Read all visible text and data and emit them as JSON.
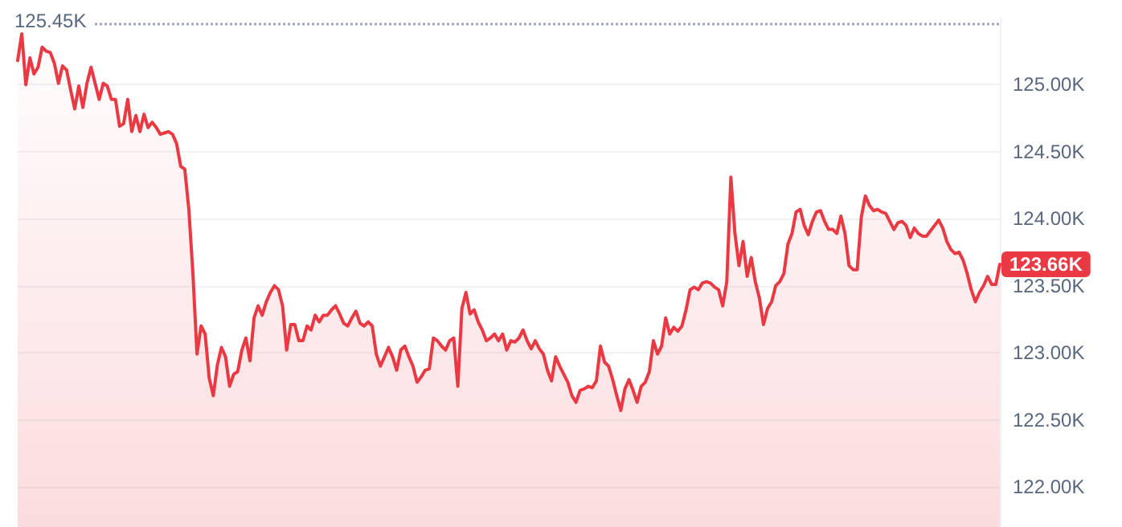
{
  "chart_data": {
    "type": "area",
    "categories": [
      null,
      null,
      null,
      null,
      null,
      null,
      null,
      null,
      null,
      null,
      null,
      null,
      null,
      null,
      null,
      null,
      null,
      null,
      null,
      null,
      null,
      null,
      null,
      null,
      null,
      null,
      null,
      null,
      null,
      null,
      null,
      null,
      null,
      null,
      null,
      null,
      null,
      null,
      null,
      null,
      null,
      null,
      null,
      null,
      null,
      null,
      null,
      null,
      null,
      null,
      null,
      null,
      null,
      null,
      null,
      null,
      null,
      null,
      null,
      null,
      null,
      null,
      null,
      null,
      null,
      null,
      null,
      null,
      null,
      null,
      null,
      null,
      null,
      null,
      null,
      null,
      null,
      null,
      null,
      null,
      null,
      null,
      null,
      null,
      null,
      null,
      null,
      null,
      null,
      null,
      null,
      null,
      null,
      null,
      null,
      null,
      null,
      null,
      null,
      null,
      null,
      null,
      null,
      null,
      null,
      null,
      null,
      null,
      null,
      null,
      null,
      null,
      null,
      null,
      null,
      null,
      null,
      null,
      null,
      null,
      null,
      null,
      null,
      null,
      null,
      null,
      null,
      null,
      null,
      null,
      null,
      null,
      null,
      null,
      null,
      null,
      null,
      null,
      null,
      null,
      null,
      null,
      null,
      null,
      null,
      null,
      null,
      null,
      null,
      null,
      null,
      null,
      null,
      null,
      null,
      null,
      null,
      null,
      null,
      null,
      null,
      null,
      null,
      null,
      null,
      null,
      null,
      null,
      null,
      null,
      null,
      null,
      null,
      null,
      null,
      null,
      null,
      null,
      null,
      null,
      null,
      null,
      null,
      null,
      null,
      null,
      null,
      null,
      null,
      null,
      null,
      null,
      null,
      null,
      null,
      null,
      null,
      null,
      null,
      null,
      null,
      null,
      null,
      null,
      null,
      null,
      null,
      null,
      null,
      null,
      null,
      null,
      null,
      null,
      null,
      null,
      null,
      null,
      null,
      null,
      null,
      null,
      null,
      null,
      null,
      null,
      null,
      null,
      null,
      null,
      null,
      null,
      null,
      null,
      null,
      null,
      null,
      null,
      null,
      null,
      null,
      null
    ],
    "series": [
      {
        "color": "#ea3943",
        "values": [
          125180,
          125380,
          125000,
          125200,
          125080,
          125130,
          125280,
          125250,
          125240,
          125160,
          125010,
          125140,
          125110,
          124960,
          124820,
          124990,
          124830,
          125010,
          125130,
          125010,
          124890,
          125010,
          124990,
          124890,
          124890,
          124690,
          124710,
          124890,
          124650,
          124770,
          124650,
          124780,
          124680,
          124720,
          124680,
          124630,
          124640,
          124650,
          124630,
          124560,
          124390,
          124370,
          124070,
          123590,
          122990,
          123200,
          123140,
          122810,
          122680,
          122910,
          123040,
          122970,
          122750,
          122840,
          122860,
          123020,
          123110,
          122940,
          123260,
          123350,
          123280,
          123380,
          123450,
          123500,
          123470,
          123350,
          123020,
          123210,
          123210,
          123090,
          123090,
          123200,
          123170,
          123280,
          123230,
          123280,
          123280,
          123320,
          123350,
          123290,
          123220,
          123200,
          123260,
          123310,
          123220,
          123200,
          123230,
          123200,
          122990,
          122900,
          122970,
          123040,
          122970,
          122870,
          123020,
          123050,
          122970,
          122900,
          122780,
          122820,
          122870,
          122880,
          123110,
          123090,
          123050,
          123020,
          123090,
          123110,
          122750,
          123330,
          123450,
          123290,
          123320,
          123230,
          123170,
          123090,
          123110,
          123140,
          123090,
          123140,
          123020,
          123090,
          123080,
          123110,
          123170,
          123090,
          123030,
          123090,
          123030,
          122990,
          122870,
          122790,
          122970,
          122900,
          122840,
          122780,
          122680,
          122630,
          122720,
          122730,
          122750,
          122740,
          122790,
          123050,
          122930,
          122900,
          122800,
          122680,
          122570,
          122730,
          122800,
          122720,
          122630,
          122750,
          122780,
          122860,
          123090,
          122990,
          123050,
          123260,
          123140,
          123190,
          123160,
          123200,
          123320,
          123470,
          123490,
          123470,
          123520,
          123530,
          123520,
          123490,
          123470,
          123350,
          123530,
          124310,
          123890,
          123650,
          123830,
          123570,
          123710,
          123530,
          123410,
          123210,
          123330,
          123380,
          123500,
          123530,
          123590,
          123810,
          123890,
          124050,
          124070,
          123950,
          123880,
          123980,
          124050,
          124060,
          123980,
          123920,
          123920,
          123890,
          124020,
          123890,
          123650,
          123620,
          123620,
          124010,
          124170,
          124100,
          124060,
          124070,
          124050,
          124040,
          123980,
          123920,
          123970,
          123980,
          123950,
          123860,
          123930,
          123890,
          123870,
          123870,
          123910,
          123950,
          123990,
          123930,
          123830,
          123770,
          123740,
          123750,
          123690,
          123590,
          123470,
          123380,
          123450,
          123500,
          123570,
          123510,
          123510,
          123660
        ]
      }
    ],
    "ylim": [
      121700,
      125500
    ],
    "yticks": [
      {
        "value": 122000,
        "label": "122.00K"
      },
      {
        "value": 122500,
        "label": "122.50K"
      },
      {
        "value": 123000,
        "label": "123.00K"
      },
      {
        "value": 123500,
        "label": "123.50K"
      },
      {
        "value": 124000,
        "label": "124.00K"
      },
      {
        "value": 124500,
        "label": "124.50K"
      },
      {
        "value": 125000,
        "label": "125.00K"
      }
    ],
    "ref_lines": [
      {
        "axis": "y",
        "value": 125450,
        "label": "125.45K",
        "line_style": "dotted",
        "color": "#a1a7bb"
      }
    ],
    "annotations": [
      "123.66K"
    ],
    "grid": "y",
    "line_style": "solid",
    "tick_labels": "y"
  }
}
